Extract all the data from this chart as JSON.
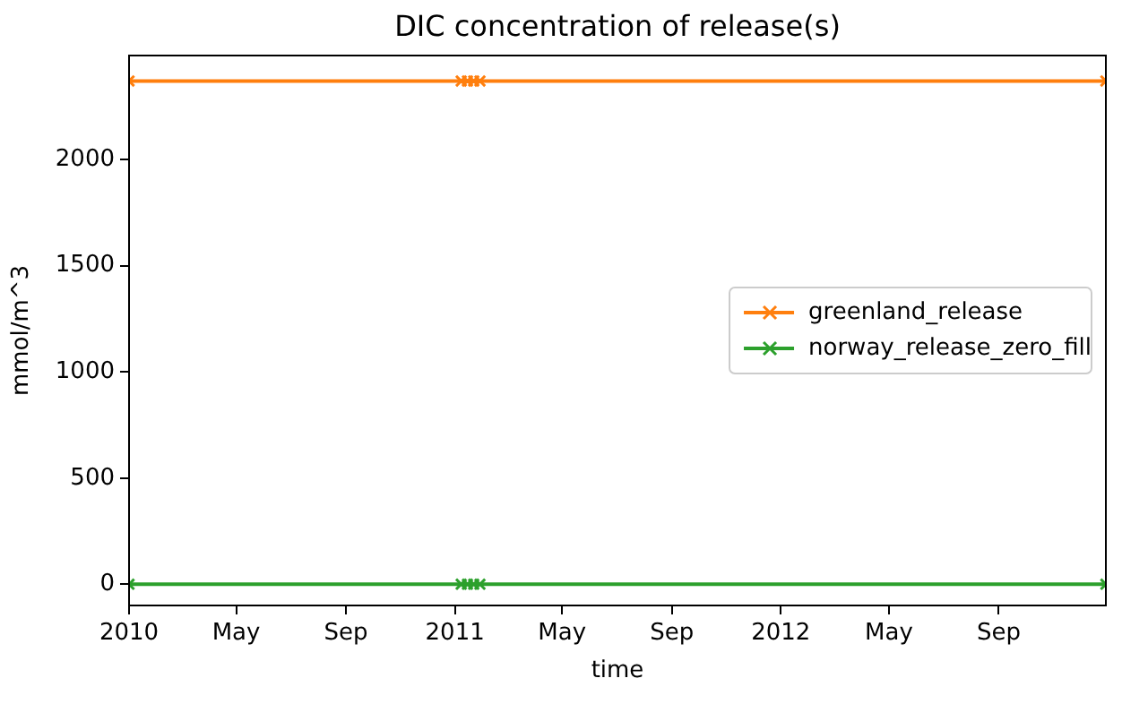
{
  "chart_data": {
    "type": "line",
    "title": "DIC concentration of release(s)",
    "xlabel": "time",
    "ylabel": "mmol/m^3",
    "series": [
      {
        "name": "greenland_release",
        "color": "#ff7f0e",
        "x": [
          "2010-01-01",
          "2011-01-08",
          "2011-01-15",
          "2011-01-22",
          "2011-01-29",
          "2012-12-30"
        ],
        "values": [
          2370,
          2370,
          2370,
          2370,
          2370,
          2370
        ]
      },
      {
        "name": "norway_release_zero_fill",
        "color": "#2ca02c",
        "x": [
          "2010-01-01",
          "2011-01-08",
          "2011-01-15",
          "2011-01-22",
          "2011-01-29",
          "2012-12-30"
        ],
        "values": [
          0,
          0,
          0,
          0,
          0,
          0
        ]
      }
    ],
    "xlim": [
      "2010-01-01",
      "2012-12-30"
    ],
    "xticks": [
      {
        "value": "2010-01-01",
        "label": "2010"
      },
      {
        "value": "2010-05-01",
        "label": "May"
      },
      {
        "value": "2010-09-01",
        "label": "Sep"
      },
      {
        "value": "2011-01-01",
        "label": "2011"
      },
      {
        "value": "2011-05-01",
        "label": "May"
      },
      {
        "value": "2011-09-01",
        "label": "Sep"
      },
      {
        "value": "2012-01-01",
        "label": "2012"
      },
      {
        "value": "2012-05-01",
        "label": "May"
      },
      {
        "value": "2012-09-01",
        "label": "Sep"
      }
    ],
    "ylim": [
      -100,
      2490
    ],
    "yticks": [
      0,
      500,
      1000,
      1500,
      2000
    ],
    "grid": false,
    "legend": "right",
    "marker": "cross",
    "line_style": "solid"
  }
}
